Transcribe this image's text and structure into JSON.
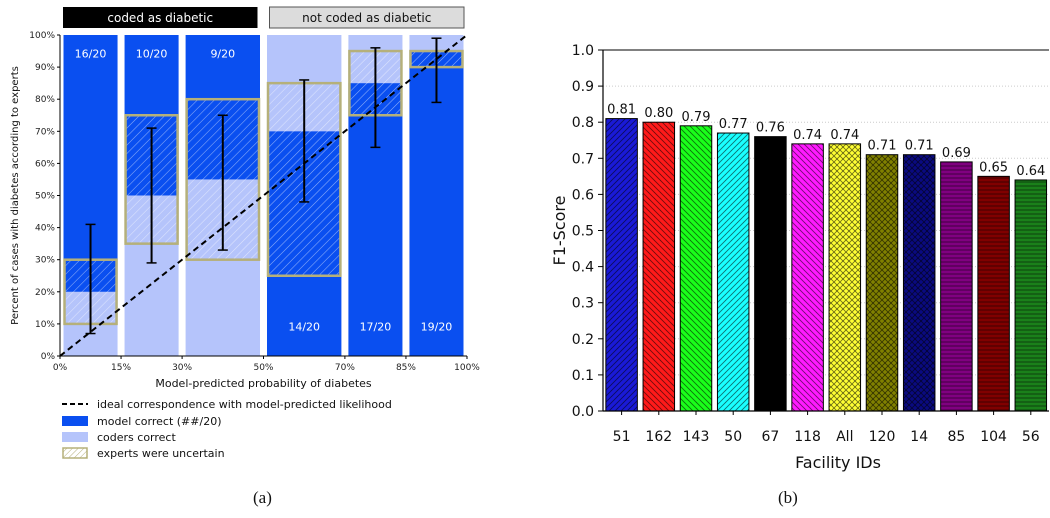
{
  "chart_data": [
    {
      "type": "bar",
      "ylabel": "Percent of cases with diabetes according to experts",
      "xlabel": "Model-predicted probability of diabetes",
      "xlim": [
        0,
        100
      ],
      "ylim": [
        0,
        100
      ],
      "x_ticks": [
        "0%",
        "15%",
        "30%",
        "50%",
        "70%",
        "85%",
        "100%"
      ],
      "y_ticks": [
        "0%",
        "10%",
        "20%",
        "30%",
        "40%",
        "50%",
        "60%",
        "70%",
        "80%",
        "90%",
        "100%"
      ],
      "group_labels": [
        {
          "label": "coded as diabetic",
          "x_range": [
            0,
            50
          ]
        },
        {
          "label": "not coded as diabetic",
          "x_range": [
            50,
            100
          ]
        }
      ],
      "bins": [
        {
          "x_range": [
            0,
            15
          ],
          "group": "coded as diabetic",
          "label": "16/20",
          "model_correct": [
            20,
            100
          ],
          "coders_correct": [
            0,
            20
          ],
          "uncertain": [
            10,
            30
          ],
          "ci": [
            7,
            41
          ]
        },
        {
          "x_range": [
            15,
            30
          ],
          "group": "coded as diabetic",
          "label": "10/20",
          "model_correct": [
            50,
            100
          ],
          "coders_correct": [
            0,
            50
          ],
          "uncertain": [
            35,
            75
          ],
          "ci": [
            29,
            71
          ]
        },
        {
          "x_range": [
            30,
            50
          ],
          "group": "coded as diabetic",
          "label": "9/20",
          "model_correct": [
            55,
            100
          ],
          "coders_correct": [
            0,
            55
          ],
          "uncertain": [
            30,
            80
          ],
          "ci": [
            33,
            75
          ]
        },
        {
          "x_range": [
            50,
            70
          ],
          "group": "not coded as diabetic",
          "label": "14/20",
          "model_correct": [
            0,
            70
          ],
          "coders_correct": [
            70,
            100
          ],
          "uncertain": [
            25,
            85
          ],
          "ci": [
            48,
            86
          ]
        },
        {
          "x_range": [
            70,
            85
          ],
          "group": "not coded as diabetic",
          "label": "17/20",
          "model_correct": [
            0,
            85
          ],
          "coders_correct": [
            85,
            100
          ],
          "uncertain": [
            75,
            95
          ],
          "ci": [
            65,
            96
          ]
        },
        {
          "x_range": [
            85,
            100
          ],
          "group": "not coded as diabetic",
          "label": "19/20",
          "model_correct": [
            0,
            95
          ],
          "coders_correct": [
            95,
            100
          ],
          "uncertain": [
            90,
            95
          ],
          "ci": [
            79,
            99
          ]
        }
      ],
      "reference_line": [
        [
          0,
          0
        ],
        [
          100,
          100
        ]
      ],
      "legend": [
        {
          "key": "ideal",
          "label": "ideal correspondence with model-predicted likelihood"
        },
        {
          "key": "model",
          "label": "model correct (##/20)"
        },
        {
          "key": "coders",
          "label": "coders correct"
        },
        {
          "key": "uncertain",
          "label": "experts were uncertain"
        }
      ],
      "legend_position": "below",
      "grid": false,
      "colors": {
        "model": "#0a4ff0",
        "coders": "#b5c4fb",
        "uncertain_border": "#b5b07a",
        "group_coded": "#000000",
        "group_not_coded": "#dcdcdc",
        "line": "#000000"
      }
    },
    {
      "type": "bar",
      "xlabel": "Facility IDs",
      "ylabel": "F1-Score",
      "ylim": [
        0,
        1.0
      ],
      "y_ticks": [
        "0.0",
        "0.1",
        "0.2",
        "0.3",
        "0.4",
        "0.5",
        "0.6",
        "0.7",
        "0.8",
        "0.9",
        "1.0"
      ],
      "categories": [
        "51",
        "162",
        "143",
        "50",
        "67",
        "118",
        "All",
        "120",
        "14",
        "85",
        "104",
        "56"
      ],
      "values": [
        0.81,
        0.8,
        0.79,
        0.77,
        0.76,
        0.74,
        0.74,
        0.71,
        0.71,
        0.69,
        0.65,
        0.64
      ],
      "value_labels": [
        "0.81",
        "0.80",
        "0.79",
        "0.77",
        "0.76",
        "0.74",
        "0.74",
        "0.71",
        "0.71",
        "0.69",
        "0.65",
        "0.64"
      ],
      "colors": [
        "#1a1ad6",
        "#ff1a1a",
        "#1aff1a",
        "#1affff",
        "#000000",
        "#ff1aff",
        "#ffff33",
        "#808000",
        "#0a0a80",
        "#800080",
        "#800000",
        "#1a801a"
      ],
      "patterns": [
        "diag-right",
        "diag-left",
        "diag-left",
        "diag-right",
        "solid",
        "diag-left",
        "cross",
        "cross",
        "cross",
        "horizontal",
        "horizontal",
        "horizontal"
      ],
      "grid": true
    }
  ],
  "captions": {
    "a": "(a)",
    "b": "(b)"
  }
}
